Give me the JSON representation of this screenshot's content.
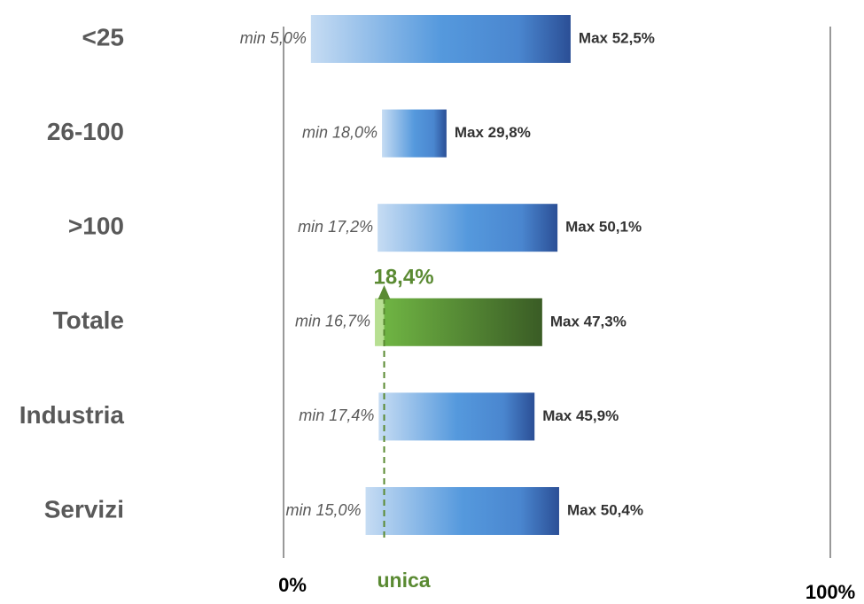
{
  "chart_data": {
    "type": "range",
    "categories": [
      "<25",
      "26-100",
      ">100",
      "Totale",
      "Industria",
      "Servizi"
    ],
    "min_values": [
      5.0,
      18.0,
      17.2,
      16.7,
      17.4,
      15.0
    ],
    "min_value_labels": [
      "min 5,0%",
      "min 18,0%",
      "min 17,2%",
      "min 16,7%",
      "min 17,4%",
      "min 15,0%"
    ],
    "max_values": [
      52.5,
      29.8,
      50.1,
      47.3,
      45.9,
      50.4
    ],
    "max_value_labels": [
      "Max 52,5%",
      "Max 29,8%",
      "Max 50,1%",
      "Max 47,3%",
      "Max 45,9%",
      "Max 50,4%"
    ],
    "bar_colors": [
      "blue",
      "blue",
      "blue",
      "green",
      "blue",
      "blue"
    ],
    "xlim": [
      0,
      100
    ],
    "xticks": [
      {
        "value": 0,
        "label": "0%"
      },
      {
        "value": 100,
        "label": "100%"
      }
    ],
    "annotation": {
      "value": 18.4,
      "label": "18,4%",
      "text": "unica",
      "color": "#5a8a32"
    }
  }
}
